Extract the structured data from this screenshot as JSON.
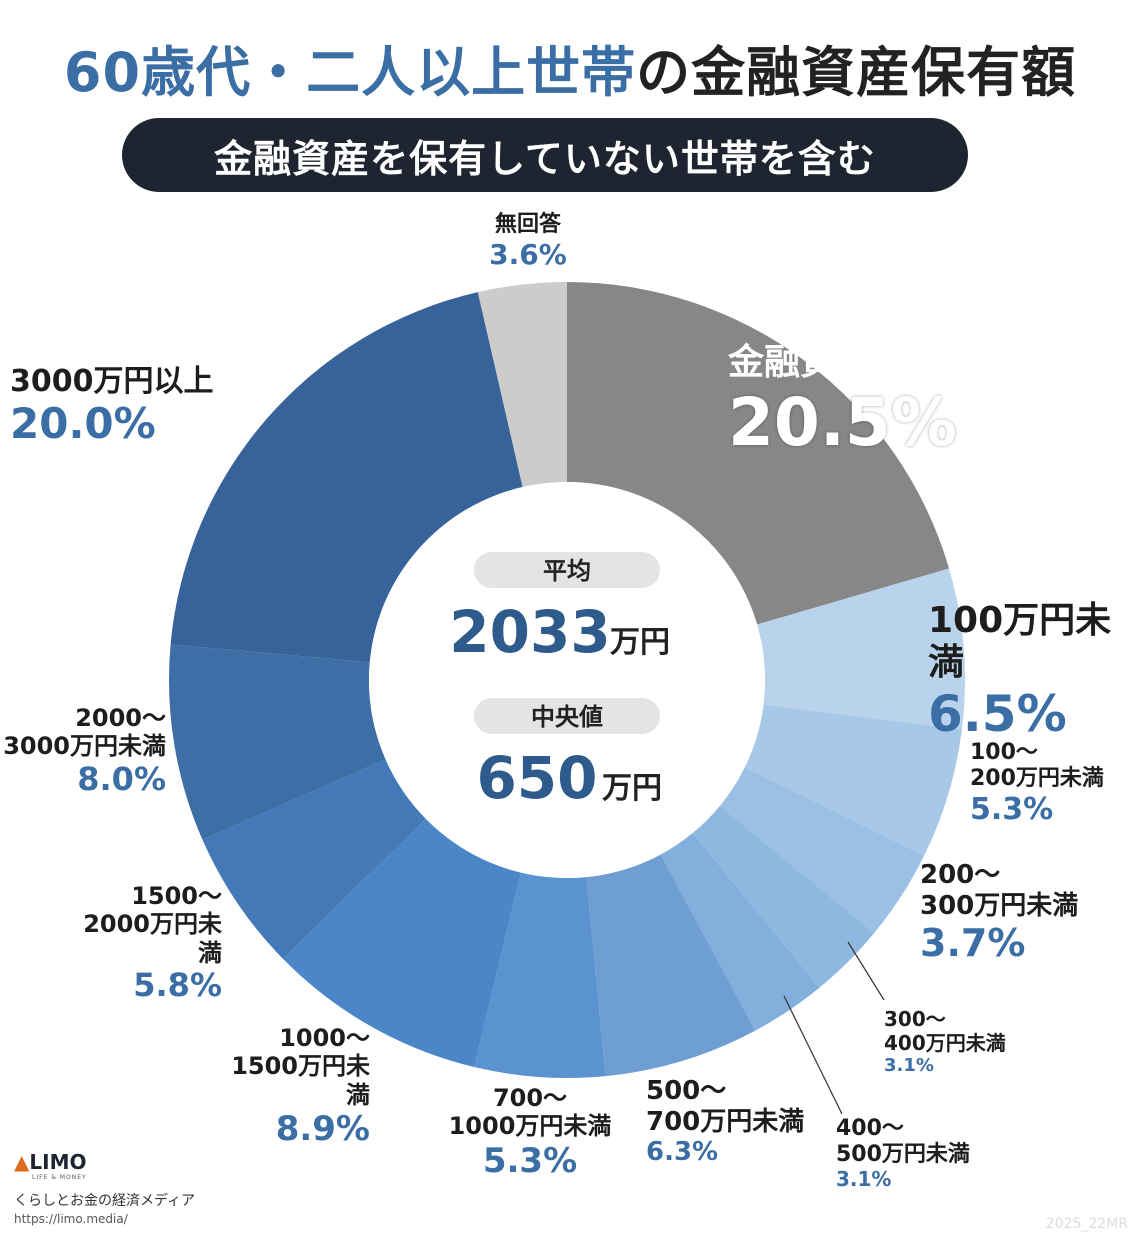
{
  "header": {
    "title_highlight": "60歳代・二人以上世帯",
    "title_rest": "の金融資産保有額",
    "subtitle": "金融資産を保有していない世帯を含む"
  },
  "center": {
    "avg_label": "平均",
    "avg_value": "2033",
    "avg_unit": "万円",
    "median_label": "中央値",
    "median_value": "650",
    "median_unit": "万円"
  },
  "chart_data": {
    "type": "donut",
    "title": "60歳代・二人以上世帯の金融資産保有額",
    "subtitle": "金融資産を保有していない世帯を含む",
    "unit": "%",
    "categories": [
      "金融資産非保有",
      "100万円未満",
      "100〜200万円未満",
      "200〜300万円未満",
      "300〜400万円未満",
      "400〜500万円未満",
      "500〜700万円未満",
      "700〜1000万円未満",
      "1000〜1500万円未満",
      "1500〜2000万円未満",
      "2000〜3000万円未満",
      "3000万円以上",
      "無回答"
    ],
    "values": [
      20.5,
      6.5,
      5.3,
      3.7,
      3.1,
      3.1,
      6.3,
      5.3,
      8.9,
      5.8,
      8.0,
      20.0,
      3.6
    ],
    "colors": [
      "#878787",
      "#b9d3ec",
      "#a8c8e8",
      "#9cc0e4",
      "#8fb8e0",
      "#83afdc",
      "#6f9fd2",
      "#5b92d0",
      "#4a86c8",
      "#4479b8",
      "#3e6ea6",
      "#37639a",
      "#cccccc"
    ],
    "labels": [
      {
        "name_lines": [
          "金融資産非保有"
        ],
        "pct": "20.5%"
      },
      {
        "name_lines": [
          "100万円未満"
        ],
        "pct": "6.5%"
      },
      {
        "name_lines": [
          "100〜",
          "200万円未満"
        ],
        "pct": "5.3%"
      },
      {
        "name_lines": [
          "200〜",
          "300万円未満"
        ],
        "pct": "3.7%"
      },
      {
        "name_lines": [
          "300〜",
          "400万円未満"
        ],
        "pct": "3.1%"
      },
      {
        "name_lines": [
          "400〜",
          "500万円未満"
        ],
        "pct": "3.1%"
      },
      {
        "name_lines": [
          "500〜",
          "700万円未満"
        ],
        "pct": "6.3%"
      },
      {
        "name_lines": [
          "700〜",
          "1000万円未満"
        ],
        "pct": "5.3%"
      },
      {
        "name_lines": [
          "1000〜",
          "1500万円未満"
        ],
        "pct": "8.9%"
      },
      {
        "name_lines": [
          "1500〜",
          "2000万円未満"
        ],
        "pct": "5.8%"
      },
      {
        "name_lines": [
          "2000〜",
          "3000万円未満"
        ],
        "pct": "8.0%"
      },
      {
        "name_lines": [
          "3000万円以上"
        ],
        "pct": "20.0%"
      },
      {
        "name_lines": [
          "無回答"
        ],
        "pct": "3.6%"
      }
    ]
  },
  "footer": {
    "logo_text": "LIMO",
    "logo_sub": "LIFE & MONEY",
    "tagline": "くらしとお金の経済メディア",
    "url": "https://limo.media/",
    "stamp": "2025_22MR"
  }
}
